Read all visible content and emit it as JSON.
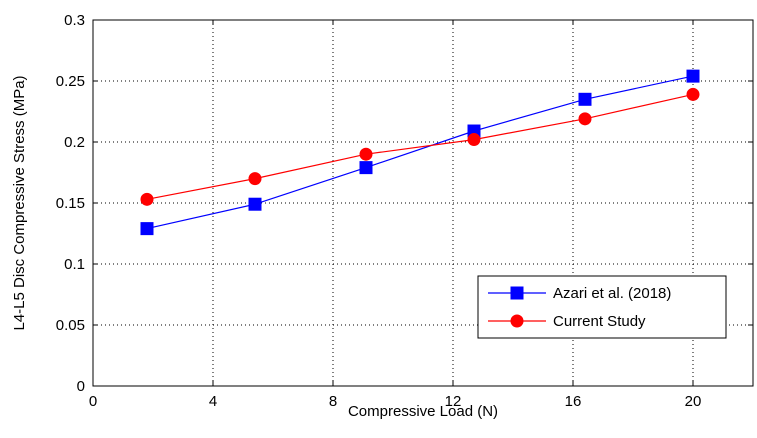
{
  "chart_data": {
    "type": "line",
    "title": "",
    "xlabel": "Compressive Load (N)",
    "ylabel": "L4-L5 Disc Compressive Stress (MPa)",
    "xlim": [
      0,
      22
    ],
    "ylim": [
      0,
      0.3
    ],
    "xticks": [
      0,
      4,
      8,
      12,
      16,
      20
    ],
    "xtick_labels": [
      "0",
      "4",
      "8",
      "12",
      "16",
      "20"
    ],
    "yticks": [
      0,
      0.05,
      0.1,
      0.15,
      0.2,
      0.25,
      0.3
    ],
    "ytick_labels": [
      "0",
      "0.05",
      "0.1",
      "0.15",
      "0.2",
      "0.25",
      "0.3"
    ],
    "grid": true,
    "grid_style": "dotted",
    "legend_position": "lower-right",
    "series": [
      {
        "name": "Azari et al. (2018)",
        "color": "#0000ff",
        "marker": "square",
        "x": [
          1.8,
          5.4,
          9.1,
          12.7,
          16.4,
          20.0
        ],
        "y": [
          0.129,
          0.149,
          0.179,
          0.209,
          0.235,
          0.254
        ]
      },
      {
        "name": "Current Study",
        "color": "#ff0000",
        "marker": "circle",
        "x": [
          1.8,
          5.4,
          9.1,
          12.7,
          16.4,
          20.0
        ],
        "y": [
          0.153,
          0.17,
          0.19,
          0.202,
          0.219,
          0.239
        ]
      }
    ]
  }
}
